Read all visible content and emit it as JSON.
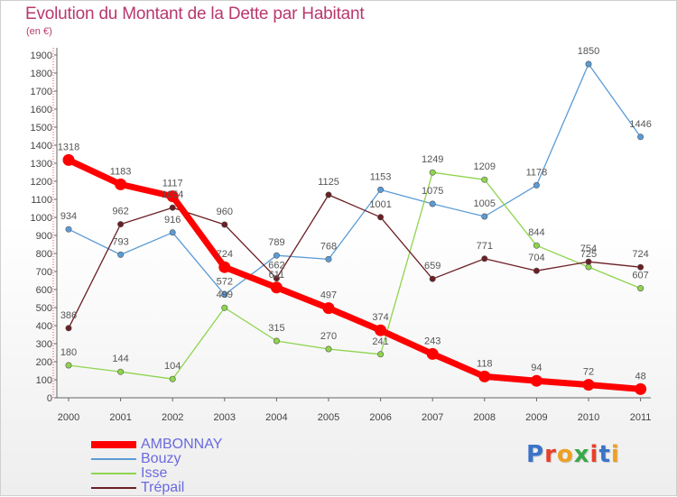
{
  "title": "Evolution du Montant de la Dette par Habitant",
  "subtitle": "(en €)",
  "chart_data": {
    "type": "line",
    "categories": [
      "2000",
      "2001",
      "2002",
      "2003",
      "2004",
      "2005",
      "2006",
      "2007",
      "2008",
      "2009",
      "2010",
      "2011"
    ],
    "ylim": [
      0,
      1900
    ],
    "yticks": [
      0,
      100,
      200,
      300,
      400,
      500,
      600,
      700,
      800,
      900,
      1000,
      1100,
      1200,
      1300,
      1400,
      1500,
      1600,
      1700,
      1800,
      1900
    ],
    "grid": false,
    "legend_position": "bottom-left",
    "series": [
      {
        "name": "AMBONNAY",
        "color": "#ff0000",
        "values": [
          1318,
          1183,
          1117,
          724,
          611,
          497,
          374,
          243,
          118,
          94,
          72,
          48
        ]
      },
      {
        "name": "Bouzy",
        "color": "#5b9bd5",
        "values": [
          934,
          793,
          916,
          572,
          789,
          768,
          1153,
          1075,
          1005,
          1178,
          1850,
          1446
        ]
      },
      {
        "name": "Isse",
        "color": "#8fd44f",
        "values": [
          180,
          144,
          104,
          499,
          315,
          270,
          241,
          1249,
          1209,
          844,
          725,
          607
        ]
      },
      {
        "name": "Trépail",
        "color": "#6b1f24",
        "values": [
          386,
          962,
          1054,
          960,
          662,
          1125,
          1001,
          659,
          771,
          704,
          754,
          724
        ]
      }
    ]
  },
  "logo": {
    "text": "Proxiti",
    "colors": [
      "#3a73c8",
      "#e8402a",
      "#f0a020",
      "#3aa84a",
      "#e8402a",
      "#3a73c8",
      "#f0a020"
    ]
  }
}
